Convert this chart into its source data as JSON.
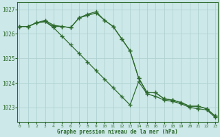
{
  "hours": [
    0,
    1,
    2,
    3,
    4,
    5,
    6,
    7,
    8,
    9,
    10,
    11,
    12,
    13,
    14,
    15,
    16,
    17,
    18,
    19,
    20,
    21,
    22,
    23
  ],
  "series1": [
    1026.3,
    1026.3,
    1026.45,
    1026.5,
    1026.3,
    1026.3,
    1026.25,
    1026.65,
    1026.75,
    1026.85,
    1026.55,
    1026.3,
    1025.8,
    1025.3,
    1024.2,
    1023.6,
    1023.6,
    1023.35,
    1023.3,
    1023.2,
    1023.05,
    1023.05,
    1022.95,
    1022.65
  ],
  "series2": [
    1026.3,
    1026.3,
    1026.45,
    1026.5,
    1026.25,
    1025.9,
    1025.55,
    1025.2,
    1024.85,
    1024.5,
    1024.15,
    1023.8,
    1023.45,
    1023.1,
    1024.05,
    1023.55,
    1023.45,
    1023.3,
    1023.25,
    1023.15,
    1023.0,
    1022.95,
    1022.9,
    1022.6
  ],
  "series3": [
    1026.3,
    1026.3,
    1026.45,
    1026.55,
    1026.35,
    1026.3,
    1026.25,
    1026.65,
    1026.8,
    1026.9,
    1026.55,
    1026.3,
    1025.8,
    1025.3,
    1024.2,
    1023.6,
    1023.6,
    1023.35,
    1023.3,
    1023.2,
    1023.05,
    1023.05,
    1022.95,
    1022.65
  ],
  "line_color": "#2d6a2d",
  "marker_color": "#2d6a2d",
  "bg_color": "#cce8e8",
  "grid_color": "#aacece",
  "text_color": "#2d6a2d",
  "xlabel": "Graphe pression niveau de la mer (hPa)",
  "ylim": [
    1022.4,
    1027.3
  ],
  "yticks": [
    1023,
    1024,
    1025,
    1026,
    1027
  ],
  "xticks": [
    0,
    1,
    2,
    3,
    4,
    5,
    6,
    7,
    8,
    9,
    10,
    11,
    12,
    13,
    14,
    15,
    16,
    17,
    18,
    19,
    20,
    21,
    22,
    23
  ]
}
